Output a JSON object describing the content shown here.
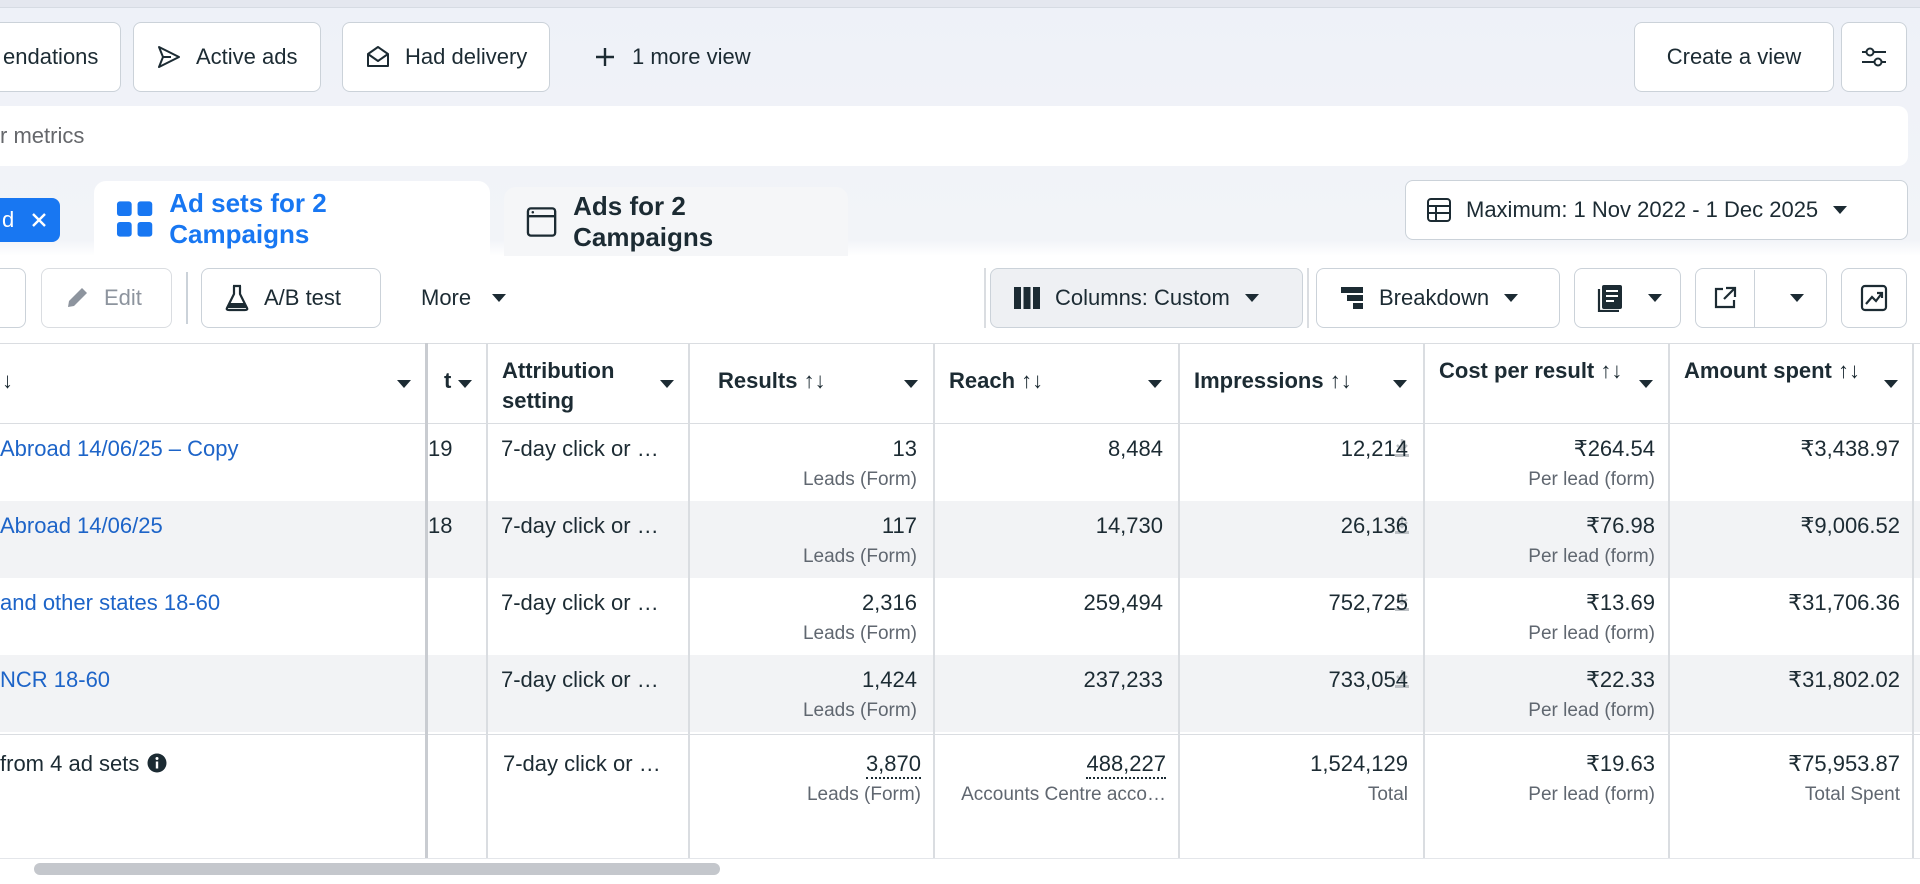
{
  "views": {
    "partial_tab": "endations",
    "active_ads": "Active ads",
    "had_delivery": "Had delivery",
    "more_view": "1 more view",
    "create_view": "Create a view"
  },
  "search": {
    "placeholder": "r metrics"
  },
  "filter_chip": {
    "label": "d"
  },
  "tabs": {
    "adsets": "Ad sets for 2 Campaigns",
    "ads": "Ads for 2 Campaigns"
  },
  "date_range": "Maximum: 1 Nov 2022 - 1 Dec 2025",
  "toolbar": {
    "edit": "Edit",
    "ab_test": "A/B test",
    "more": "More",
    "columns": "Columns: Custom",
    "breakdown": "Breakdown"
  },
  "table": {
    "headers": {
      "name": "↓",
      "budget": "t",
      "attribution": "Attribution setting",
      "results": "Results ↑↓",
      "reach": "Reach ↑↓",
      "impressions": "Impressions ↑↓",
      "cost_per_result": "Cost per result ↑↓",
      "amount_spent": "Amount spent ↑↓"
    },
    "rows": [
      {
        "name": "Abroad 14/06/25 – Copy",
        "budget": "19",
        "attribution": "7-day click or …",
        "results": "13",
        "results_sub": "Leads (Form)",
        "reach": "8,484",
        "impressions": "12,214",
        "cpr": "₹264.54",
        "cpr_sub": "Per lead (form)",
        "spent": "₹3,438.97"
      },
      {
        "name": "Abroad 14/06/25",
        "budget": "18",
        "attribution": "7-day click or …",
        "results": "117",
        "results_sub": "Leads (Form)",
        "reach": "14,730",
        "impressions": "26,136",
        "cpr": "₹76.98",
        "cpr_sub": "Per lead (form)",
        "spent": "₹9,006.52"
      },
      {
        "name": "and other states 18-60",
        "budget": "",
        "attribution": "7-day click or …",
        "results": "2,316",
        "results_sub": "Leads (Form)",
        "reach": "259,494",
        "impressions": "752,725",
        "cpr": "₹13.69",
        "cpr_sub": "Per lead (form)",
        "spent": "₹31,706.36"
      },
      {
        "name": " NCR 18-60",
        "budget": "",
        "attribution": "7-day click or …",
        "results": "1,424",
        "results_sub": "Leads (Form)",
        "reach": "237,233",
        "impressions": "733,054",
        "cpr": "₹22.33",
        "cpr_sub": "Per lead (form)",
        "spent": "₹31,802.02"
      }
    ],
    "totals": {
      "name": "from 4 ad sets",
      "attribution": "7-day click or …",
      "results": "3,870",
      "results_sub": "Leads (Form)",
      "reach": "488,227",
      "reach_sub": "Accounts Centre acco…",
      "impressions": "1,524,129",
      "impressions_sub": "Total",
      "cpr": "₹19.63",
      "cpr_sub": "Per lead (form)",
      "spent": "₹75,953.87",
      "spent_sub": "Total Spent"
    }
  },
  "colors": {
    "accent": "#1877f2",
    "link": "#1d64c8",
    "text": "#1c2b33",
    "muted": "#606770"
  }
}
